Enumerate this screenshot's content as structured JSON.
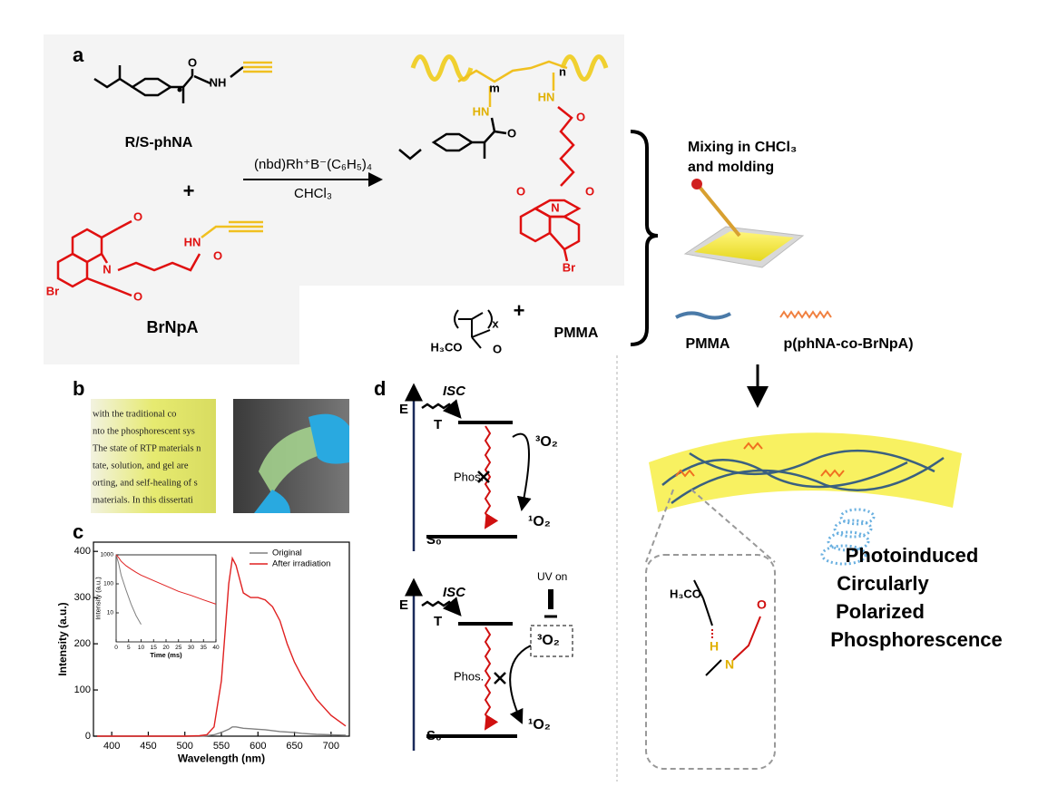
{
  "panels": {
    "a": "a",
    "b": "b",
    "c": "c",
    "d": "d"
  },
  "scheme": {
    "monomer1": "R/S-phNA",
    "plus1": "+",
    "monomer2": "BrNpA",
    "catalyst": "(nbd)Rh⁺B⁻(C₆H₅)₄",
    "solvent": "CHCl₃",
    "plus2": "+",
    "pmma": "PMMA",
    "atoms": [
      "O",
      "NH",
      "O",
      "N",
      "O",
      "Br",
      "HN",
      "O",
      "m",
      "n",
      "HN",
      "HN",
      "O",
      "O",
      "N",
      "O",
      "O",
      "Br",
      "x",
      "H₃CO",
      "O"
    ]
  },
  "fabrication": {
    "step1": "Mixing in CHCl₃",
    "step2": "and molding",
    "legend_pmma": "PMMA",
    "legend_copolymer": "p(phNA-co-BrNpA)"
  },
  "photo_text": [
    "with the traditional co",
    "nto the phosphorescent sys",
    "The state of RTP materials n",
    "tate, solution, and gel are",
    "orting, and self-healing of s",
    "materials. In this dissertati"
  ],
  "diagram_top": {
    "energy": "E",
    "isc": "ISC",
    "triplet": "T",
    "oxygen3": "³O₂",
    "phos": "Phos.",
    "oxygen1": "¹O₂",
    "ground": "S₀"
  },
  "diagram_bottom": {
    "energy": "E",
    "isc": "ISC",
    "triplet": "T",
    "uv": "UV on",
    "oxygen3": "³O₂",
    "phos": "Phos.",
    "oxygen1": "¹O₂",
    "ground": "S₀"
  },
  "interaction": {
    "methoxy": "H₃CO",
    "hydrogen": "H",
    "nitrogen": "N",
    "oxygen": "O"
  },
  "result": [
    "Photoinduced",
    "Circularly",
    "Polarized",
    "Phosphorescence"
  ],
  "chart_data": [
    {
      "type": "line",
      "xlabel": "Wavelength (nm)",
      "ylabel": "Intensity (a.u.)",
      "xlim": [
        375,
        725
      ],
      "ylim": [
        0,
        420
      ],
      "xticks": [
        400,
        450,
        500,
        550,
        600,
        650,
        700
      ],
      "yticks": [
        0,
        100,
        200,
        300,
        400
      ],
      "legend": "upper right",
      "x": [
        380,
        420,
        460,
        500,
        520,
        530,
        540,
        550,
        560,
        565,
        570,
        580,
        590,
        600,
        610,
        620,
        630,
        640,
        650,
        660,
        680,
        700,
        720
      ],
      "series": [
        {
          "name": "Original",
          "color": "#808080",
          "values": [
            0,
            0,
            0,
            0,
            0,
            1,
            3,
            8,
            15,
            20,
            20,
            17,
            16,
            15,
            14,
            12,
            10,
            9,
            8,
            6,
            4,
            3,
            2
          ]
        },
        {
          "name": "After irradiation",
          "color": "#e02020",
          "values": [
            0,
            0,
            0,
            0,
            1,
            3,
            20,
            120,
            330,
            385,
            370,
            310,
            300,
            300,
            295,
            280,
            250,
            200,
            160,
            130,
            80,
            45,
            22
          ]
        }
      ]
    },
    {
      "type": "line",
      "xlabel": "Time (ms)",
      "ylabel": "Intensity (a.u.)",
      "xlim": [
        0,
        40
      ],
      "ylim": [
        1,
        1000
      ],
      "log_y": true,
      "xticks": [
        0,
        5,
        10,
        15,
        20,
        25,
        30,
        35,
        40
      ],
      "yticks": [
        10,
        100,
        1000
      ],
      "x": [
        0,
        1,
        2,
        4,
        6,
        8,
        10,
        15,
        20,
        25,
        30,
        35,
        40
      ],
      "series": [
        {
          "name": "Original",
          "color": "#808080",
          "values": [
            1000,
            500,
            200,
            60,
            20,
            8,
            4,
            null,
            null,
            null,
            null,
            null,
            null
          ]
        },
        {
          "name": "After irradiation",
          "color": "#e02020",
          "values": [
            1000,
            800,
            600,
            420,
            320,
            250,
            200,
            130,
            85,
            55,
            40,
            28,
            20
          ]
        }
      ]
    }
  ]
}
